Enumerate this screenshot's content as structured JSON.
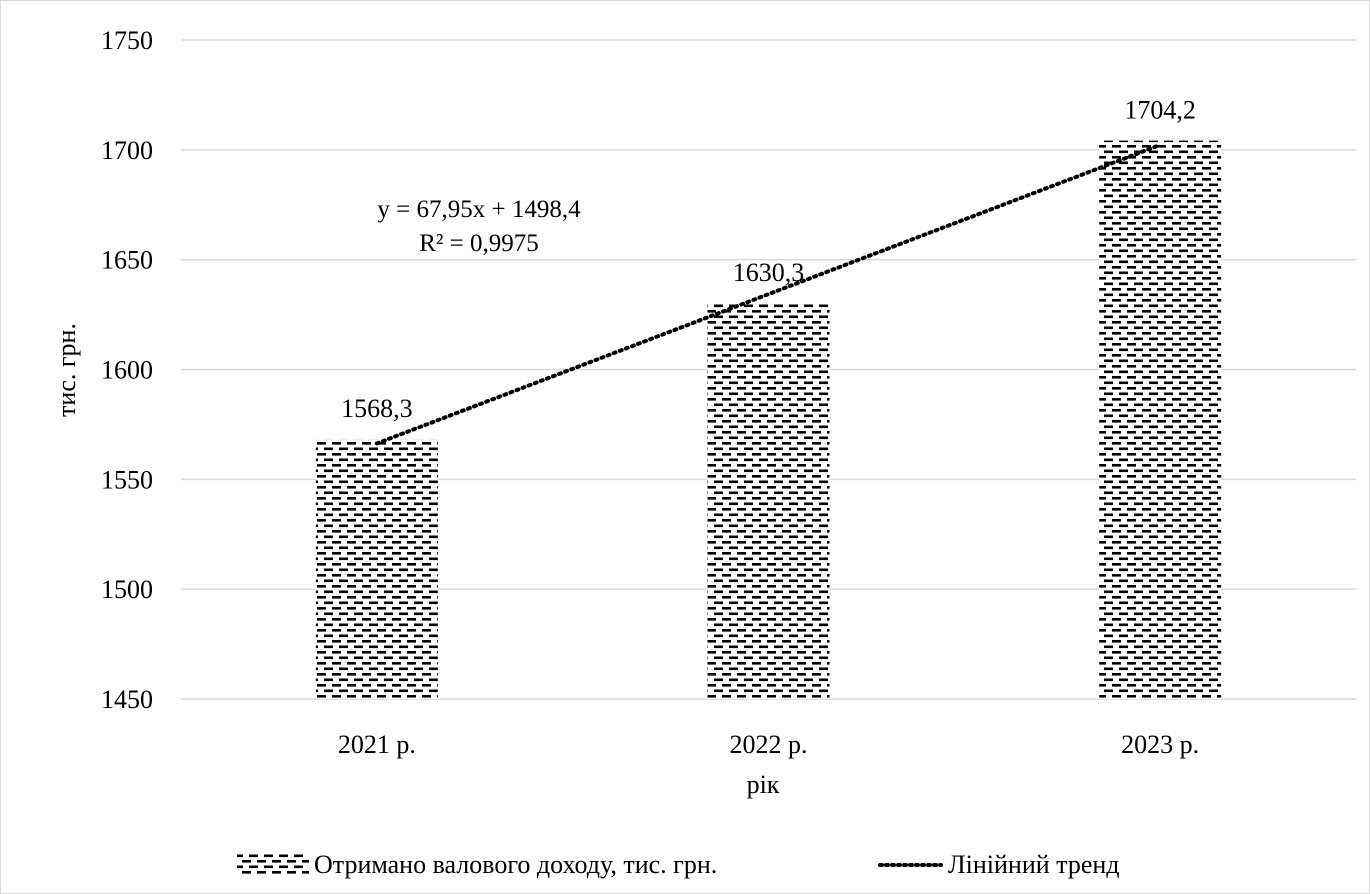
{
  "chart_data": {
    "type": "bar",
    "xlabel": "рік",
    "ylabel": "тис. грн.",
    "categories": [
      "2021 р.",
      "2022 р.",
      "2023 р."
    ],
    "series": [
      {
        "name": "Отримано валового доходу, тис. грн.",
        "values": [
          1568.3,
          1630.3,
          1704.2
        ],
        "value_labels": [
          "1568,3",
          "1630,3",
          "1704,2"
        ],
        "pattern": "dashed-horizontal-hatch"
      }
    ],
    "trendline": {
      "type": "linear",
      "name": "Лінійний тренд",
      "slope": 67.95,
      "intercept": 1498.4,
      "equation": "y = 67,95x + 1498,4",
      "r_squared": "R² = 0,9975",
      "style": "dotted"
    },
    "ylim": [
      1450,
      1750
    ],
    "yticks": [
      1450,
      1500,
      1550,
      1600,
      1650,
      1700,
      1750
    ],
    "grid": true,
    "legend_position": "bottom"
  },
  "colors": {
    "bar_pattern": "#000000",
    "bar_background": "#ffffff",
    "grid": "#d9d9d9",
    "trend": "#000000",
    "text": "#000000"
  }
}
